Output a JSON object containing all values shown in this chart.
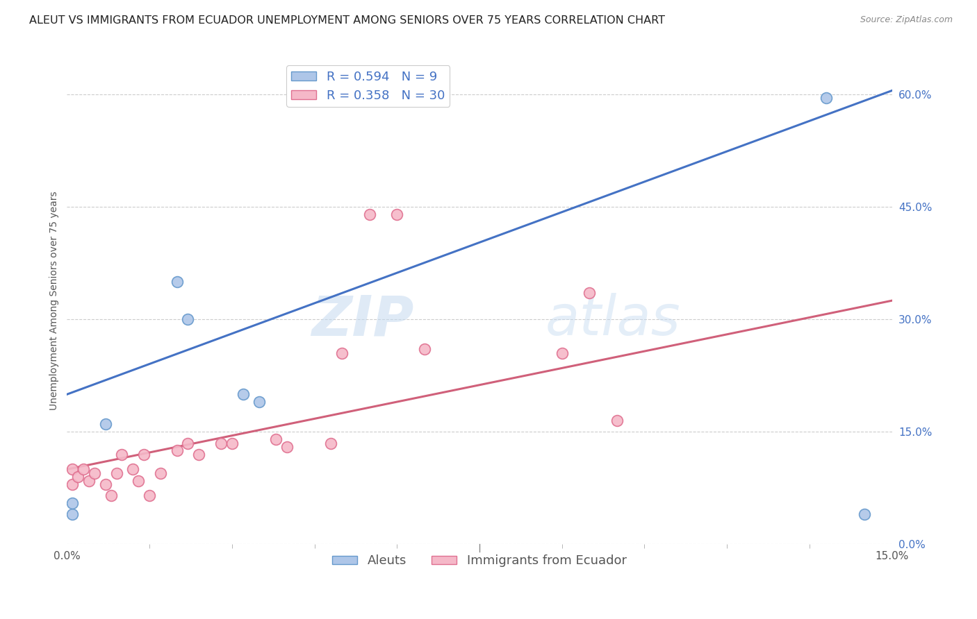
{
  "title": "ALEUT VS IMMIGRANTS FROM ECUADOR UNEMPLOYMENT AMONG SENIORS OVER 75 YEARS CORRELATION CHART",
  "source": "Source: ZipAtlas.com",
  "ylabel": "Unemployment Among Seniors over 75 years",
  "xmin": 0.0,
  "xmax": 0.15,
  "ymin": 0.0,
  "ymax": 0.65,
  "aleut_color": "#aec6e8",
  "aleut_edge_color": "#6699cc",
  "ecuador_color": "#f5b8c8",
  "ecuador_edge_color": "#e07090",
  "line_blue": "#4472c4",
  "line_pink": "#d0607a",
  "aleut_R": 0.594,
  "aleut_N": 9,
  "ecuador_R": 0.358,
  "ecuador_N": 30,
  "legend_R_color": "#4472c4",
  "blue_line_y0": 0.2,
  "blue_line_y1": 0.605,
  "pink_line_y0": 0.1,
  "pink_line_y1": 0.325,
  "aleut_x": [
    0.001,
    0.001,
    0.007,
    0.02,
    0.022,
    0.032,
    0.035,
    0.138,
    0.145
  ],
  "aleut_y": [
    0.04,
    0.055,
    0.16,
    0.35,
    0.3,
    0.2,
    0.19,
    0.595,
    0.04
  ],
  "ecuador_x": [
    0.001,
    0.001,
    0.002,
    0.003,
    0.004,
    0.005,
    0.007,
    0.008,
    0.009,
    0.01,
    0.012,
    0.013,
    0.014,
    0.015,
    0.017,
    0.02,
    0.022,
    0.024,
    0.028,
    0.03,
    0.038,
    0.04,
    0.048,
    0.05,
    0.055,
    0.06,
    0.065,
    0.09,
    0.095,
    0.1
  ],
  "ecuador_y": [
    0.08,
    0.1,
    0.09,
    0.1,
    0.085,
    0.095,
    0.08,
    0.065,
    0.095,
    0.12,
    0.1,
    0.085,
    0.12,
    0.065,
    0.095,
    0.125,
    0.135,
    0.12,
    0.135,
    0.135,
    0.14,
    0.13,
    0.135,
    0.255,
    0.44,
    0.44,
    0.26,
    0.255,
    0.335,
    0.165
  ],
  "background_color": "#ffffff",
  "watermark_zip": "ZIP",
  "watermark_atlas": "atlas",
  "marker_size": 130,
  "title_fontsize": 11.5,
  "legend_fontsize": 13,
  "axis_label_fontsize": 10,
  "tick_fontsize": 11
}
